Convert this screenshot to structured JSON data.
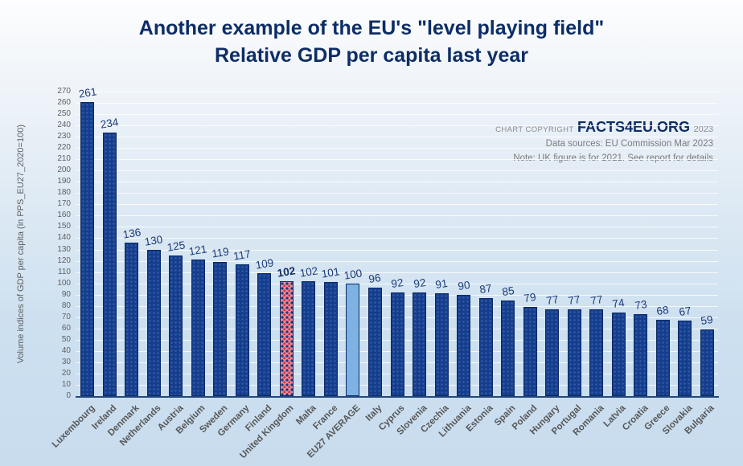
{
  "title": {
    "line1": "Another example of the EU's \"level playing field\"",
    "line2": "Relative GDP per capita last year"
  },
  "copyright": {
    "prefix": "CHART COPYRIGHT",
    "brand": "FACTS4EU.ORG",
    "year": "2023",
    "source": "Data sources: EU Commission Mar 2023",
    "note": "Note: UK figure is for 2021. See report for details"
  },
  "chart_data": {
    "type": "bar",
    "title": "Another example of the EU's \"level playing field\" — Relative GDP per capita last year",
    "xlabel": "",
    "ylabel": "Volume indices of GDP per capita (in PPS_EU27_2020=100)",
    "ylim": [
      0,
      270
    ],
    "ytick_step": 10,
    "grid": true,
    "legend_position": "none",
    "categories": [
      "Luxembourg",
      "Ireland",
      "Denmark",
      "Netherlands",
      "Austria",
      "Belgium",
      "Sweden",
      "Germany",
      "Finland",
      "United Kingdom",
      "Malta",
      "France",
      "EU27 AVERAGE",
      "Italy",
      "Cyprus",
      "Slovenia",
      "Czechia",
      "Lithuania",
      "Estonia",
      "Spain",
      "Poland",
      "Hungary",
      "Portugal",
      "Romania",
      "Latvia",
      "Croatia",
      "Greece",
      "Slovakia",
      "Bulgaria"
    ],
    "values": [
      261,
      234,
      136,
      130,
      125,
      121,
      119,
      117,
      109,
      102,
      102,
      101,
      100,
      96,
      92,
      92,
      91,
      90,
      87,
      85,
      79,
      77,
      77,
      77,
      74,
      73,
      68,
      67,
      59
    ],
    "bar_styles": [
      "navy",
      "navy",
      "navy",
      "navy",
      "navy",
      "navy",
      "navy",
      "navy",
      "navy",
      "uk",
      "navy",
      "navy",
      "eu",
      "navy",
      "navy",
      "navy",
      "navy",
      "navy",
      "navy",
      "navy",
      "navy",
      "navy",
      "navy",
      "navy",
      "navy",
      "navy",
      "navy",
      "navy",
      "navy"
    ],
    "highlight_notes": {
      "united_kingdom": "red dotted-pattern bar, bold value label",
      "eu27_average": "solid light blue bar"
    },
    "colors": {
      "bar_navy": "#163d8c",
      "bar_border": "#0c2a63",
      "uk_fill": "#ef8a96",
      "uk_accent": "#d02e48",
      "eu_fill": "#7db2e2",
      "title_navy": "#0d2d66",
      "label_gray": "#575757"
    }
  }
}
